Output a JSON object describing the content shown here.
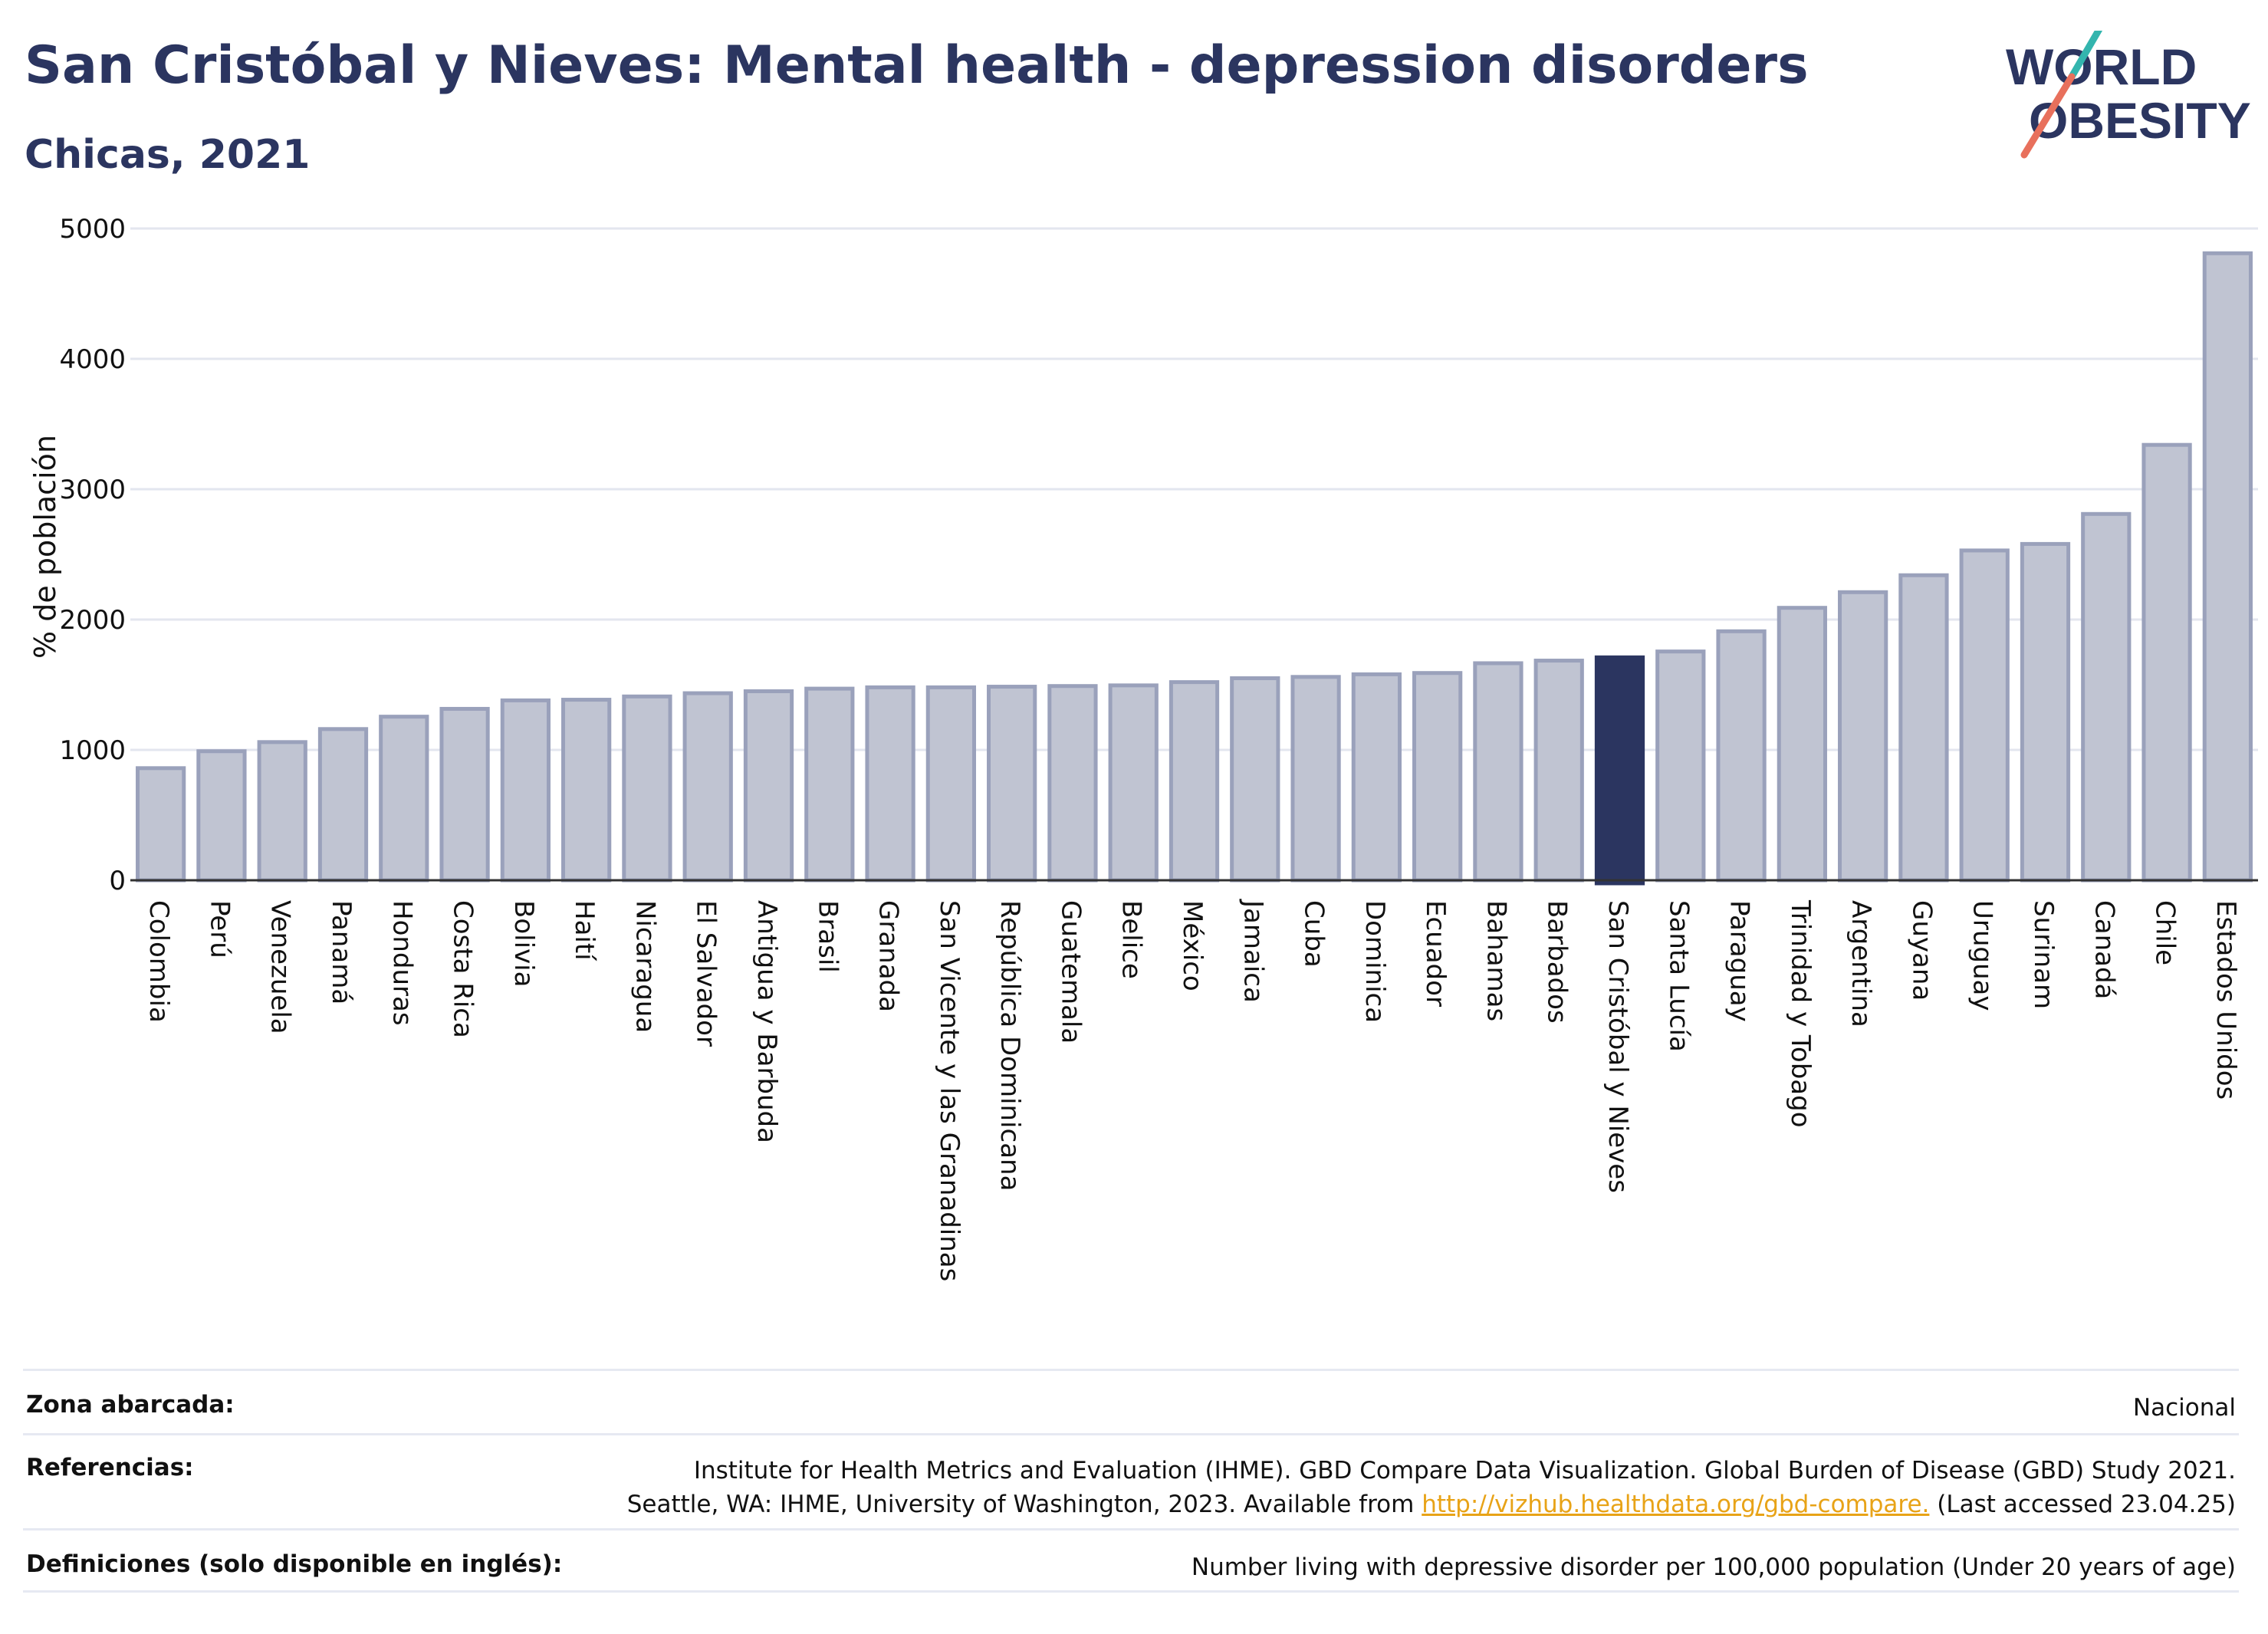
{
  "header": {
    "title": "San Cristóbal y Nieves: Mental health - depression disorders",
    "subtitle": "Chicas, 2021"
  },
  "logo": {
    "line1": "WORLD",
    "line2": "OBESITY"
  },
  "chart_data": {
    "type": "bar",
    "ylabel": "% de población",
    "xlabel": "",
    "ylim": [
      0,
      5000
    ],
    "yticks": [
      0,
      1000,
      2000,
      3000,
      4000,
      5000
    ],
    "grid": true,
    "highlight": "San Cristóbal y Nieves",
    "categories": [
      "Colombia",
      "Perú",
      "Venezuela",
      "Panamá",
      "Honduras",
      "Costa Rica",
      "Bolivia",
      "Haití",
      "Nicaragua",
      "El Salvador",
      "Antigua y Barbuda",
      "Brasil",
      "Granada",
      "San Vicente y las Granadinas",
      "República Dominicana",
      "Guatemala",
      "Belice",
      "México",
      "Jamaica",
      "Cuba",
      "Dominica",
      "Ecuador",
      "Bahamas",
      "Barbados",
      "San Cristóbal y Nieves",
      "Santa Lucía",
      "Paraguay",
      "Trinidad y Tobago",
      "Argentina",
      "Guyana",
      "Uruguay",
      "Surinam",
      "Canadá",
      "Chile",
      "Estados Unidos"
    ],
    "values": [
      860,
      990,
      1060,
      1160,
      1255,
      1315,
      1380,
      1385,
      1410,
      1435,
      1450,
      1470,
      1480,
      1480,
      1485,
      1490,
      1495,
      1520,
      1550,
      1560,
      1580,
      1590,
      1665,
      1685,
      1710,
      1755,
      1910,
      2090,
      2210,
      2340,
      2530,
      2580,
      2810,
      3340,
      4810
    ],
    "colors": {
      "bar": "#c0c4d2",
      "bar_border": "#9aa1bb",
      "highlight": "#2b3560",
      "grid": "#e3e6ef",
      "axis": "#333333"
    }
  },
  "footer": {
    "zona_label": "Zona abarcada:",
    "zona_value": "Nacional",
    "ref_label": "Referencias:",
    "ref_line1": "Institute for Health Metrics and Evaluation (IHME). GBD Compare Data Visualization. Global Burden of Disease (GBD) Study 2021.",
    "ref_line2_pre": "Seattle, WA: IHME, University of Washington, 2023. Available from ",
    "ref_link": "http://vizhub.healthdata.org/gbd-compare.",
    "ref_line2_post": " (Last accessed 23.04.25)",
    "def_label": "Definiciones (solo disponible en inglés):",
    "def_value": "Number living with depressive disorder per 100,000 population (Under 20 years of age)"
  }
}
